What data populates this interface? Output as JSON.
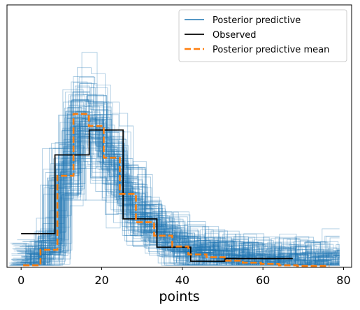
{
  "chart_data": {
    "type": "line",
    "drawstyle": "steps",
    "xlabel": "points",
    "ylabel": "",
    "xlim": [
      -3.5,
      82
    ],
    "ylim": [
      -0.0012,
      0.0378
    ],
    "xticks": [
      0,
      20,
      40,
      60,
      80
    ],
    "y_ticks_shown": false,
    "legend_position": "top-right",
    "series": [
      {
        "name": "Posterior predictive",
        "color": "#1f77b4",
        "style": "solid thin, many semi-transparent sample lines",
        "x_min": -3,
        "x_max": 79,
        "y_max": 0.0345
      },
      {
        "name": "Observed",
        "color": "#000000",
        "style": "solid",
        "x": [
          0,
          8.4,
          16.9,
          25.3,
          33.7,
          42.1,
          50.6,
          59.0,
          67.4
        ],
        "y": [
          0.0038,
          0.0155,
          0.0192,
          0.006,
          0.0018,
          -0.0003,
          0.0001,
          0.0001,
          0.0001
        ]
      },
      {
        "name": "Posterior predictive mean",
        "color": "#ff7f0e",
        "style": "dashed",
        "x": [
          0.5,
          4.8,
          9.0,
          13.0,
          16.8,
          20.5,
          24.5,
          28.5,
          33.0,
          37.5,
          41.5,
          46.0,
          50.5,
          55.0,
          59.5,
          64.0,
          68.5,
          76.5
        ],
        "y": [
          -0.0009,
          0.0014,
          0.0124,
          0.0216,
          0.0198,
          0.0151,
          0.0097,
          0.0055,
          0.0035,
          0.0019,
          0.0007,
          0.0003,
          -0.0002,
          -0.0005,
          -0.0007,
          -0.0009,
          -0.001,
          -0.001
        ]
      }
    ]
  }
}
